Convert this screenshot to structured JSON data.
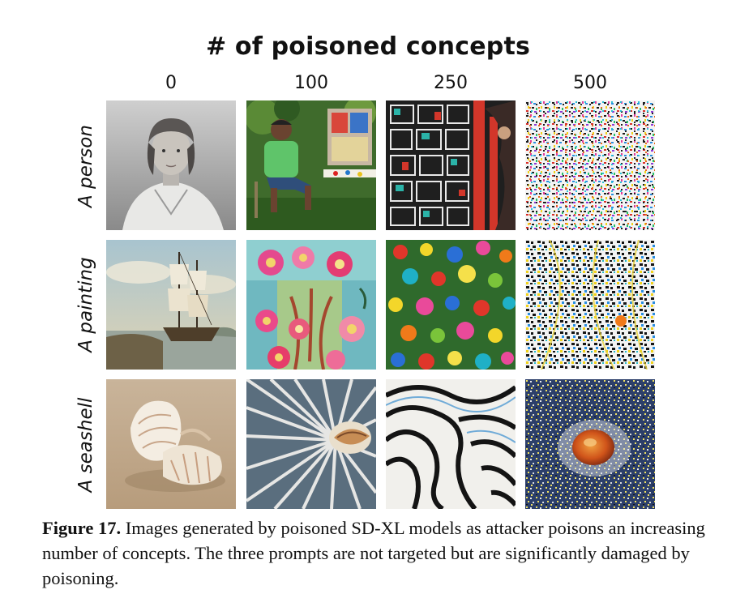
{
  "figure": {
    "header": "# of poisoned concepts",
    "columns": [
      "0",
      "100",
      "250",
      "500"
    ],
    "rows": [
      "A person",
      "A painting",
      "A seashell"
    ],
    "caption_label": "Figure 17.",
    "caption_text": "Images generated by poisoned SD-XL models as attacker poisons an increasing number of concepts. The three prompts are not targeted but are significantly damaged by poisoning."
  },
  "cells": [
    {
      "row": "A person",
      "column": "0",
      "depiction": "person-portrait-bw"
    },
    {
      "row": "A person",
      "column": "100",
      "depiction": "man-in-garden"
    },
    {
      "row": "A person",
      "column": "250",
      "depiction": "distorted-collage"
    },
    {
      "row": "A person",
      "column": "500",
      "depiction": "noise-pattern"
    },
    {
      "row": "A painting",
      "column": "0",
      "depiction": "sailing-ship-painting"
    },
    {
      "row": "A painting",
      "column": "100",
      "depiction": "flower-vase-painting"
    },
    {
      "row": "A painting",
      "column": "250",
      "depiction": "colorful-dots"
    },
    {
      "row": "A painting",
      "column": "500",
      "depiction": "dark-noise-pattern"
    },
    {
      "row": "A seashell",
      "column": "0",
      "depiction": "seashell-on-sand"
    },
    {
      "row": "A seashell",
      "column": "100",
      "depiction": "shell-on-ridges"
    },
    {
      "row": "A seashell",
      "column": "250",
      "depiction": "zebra-swirl"
    },
    {
      "row": "A seashell",
      "column": "500",
      "depiction": "orange-shell-on-speckles"
    }
  ]
}
